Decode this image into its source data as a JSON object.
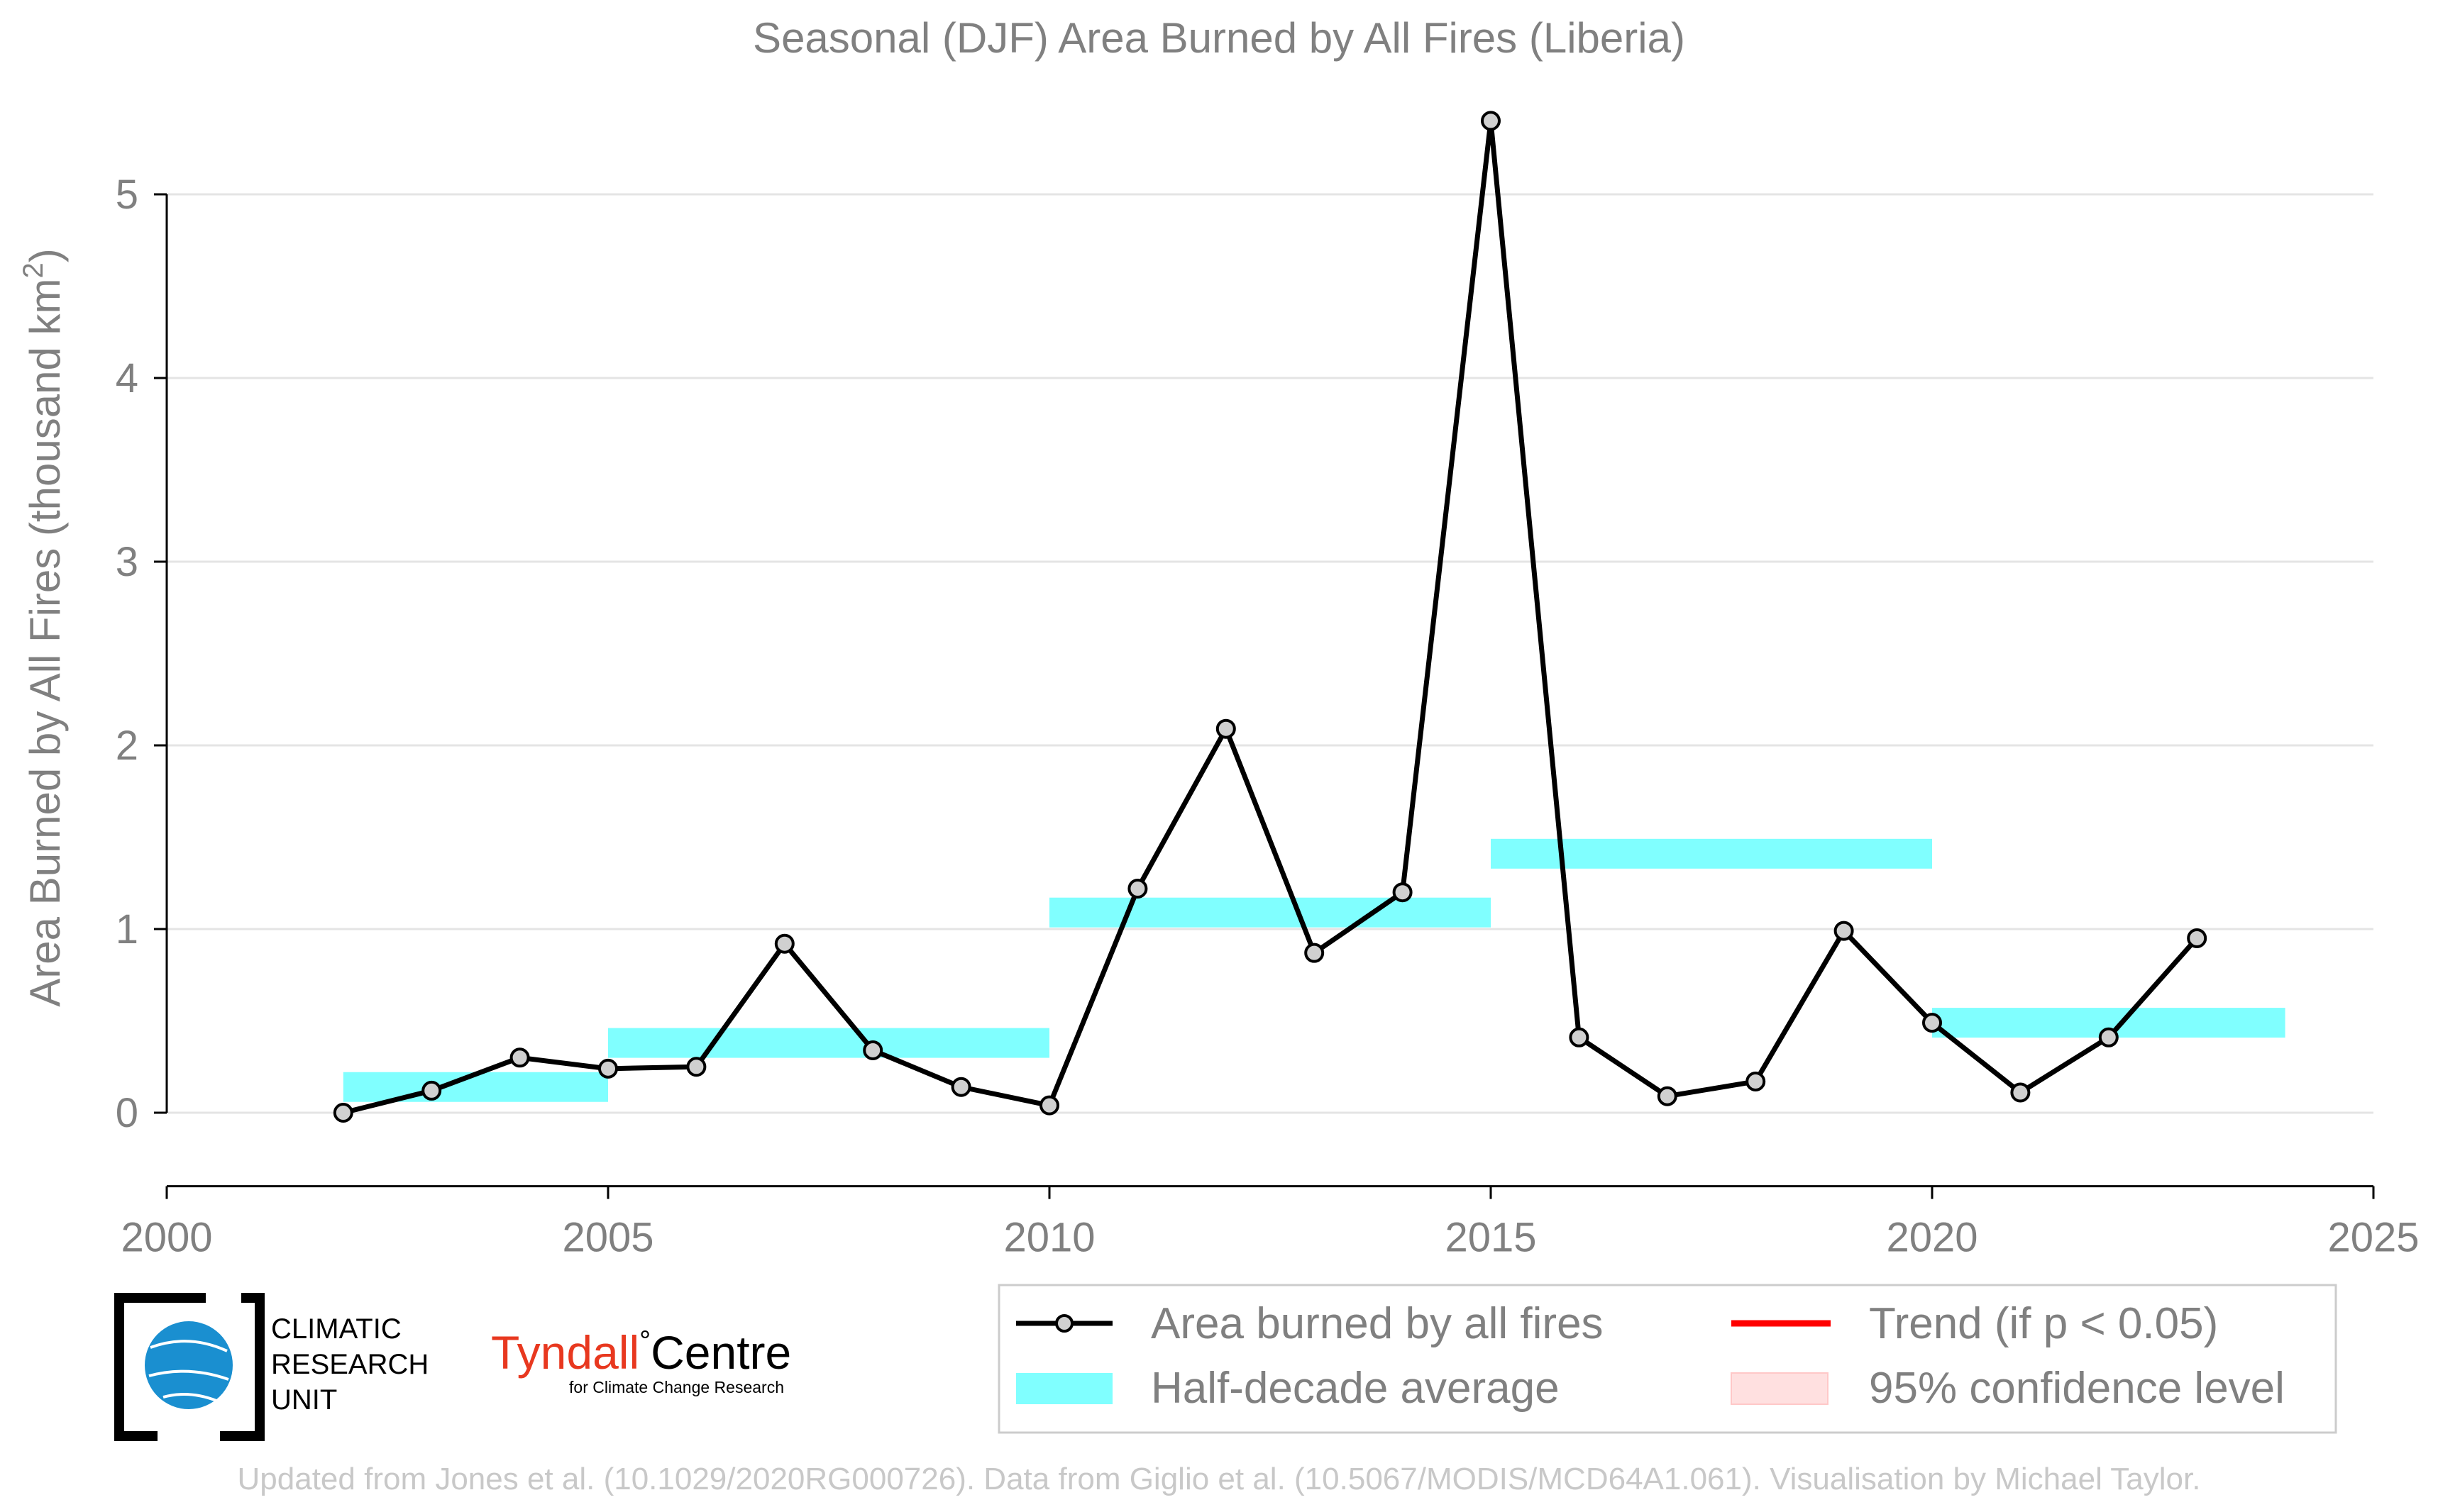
{
  "chart_data": {
    "type": "line",
    "title": "Seasonal (DJF) Area Burned by All Fires (Liberia)",
    "ylabel_main": "Area Burned by All Fires (thousand km",
    "ylabel_sup": "2",
    "ylabel_close": ")",
    "xlim": [
      2000,
      2025
    ],
    "ylim": [
      -0.4,
      5.45
    ],
    "xticks": [
      "2000",
      "2005",
      "2010",
      "2015",
      "2020",
      "2025"
    ],
    "yticks": [
      "0",
      "1",
      "2",
      "3",
      "4",
      "5"
    ],
    "grid": true,
    "legend_position": "bottom-right",
    "series": [
      {
        "name": "Area burned by all fires",
        "color": "#000000",
        "marker_fill": "#d0d0d0",
        "x": [
          2002,
          2003,
          2004,
          2005,
          2006,
          2007,
          2008,
          2009,
          2010,
          2011,
          2012,
          2013,
          2014,
          2015,
          2016,
          2017,
          2018,
          2019,
          2020,
          2021,
          2022,
          2023
        ],
        "values": [
          0.0,
          0.12,
          0.3,
          0.24,
          0.25,
          0.92,
          0.34,
          0.14,
          0.04,
          1.22,
          2.09,
          0.87,
          1.2,
          5.4,
          0.41,
          0.09,
          0.17,
          0.99,
          0.49,
          0.11,
          0.41,
          0.95
        ]
      }
    ],
    "half_decade_average": {
      "name": "Half-decade average",
      "color": "#80ffff",
      "segments": [
        {
          "x0": 2002,
          "x1": 2005,
          "value": 0.14
        },
        {
          "x0": 2005,
          "x1": 2010,
          "value": 0.38
        },
        {
          "x0": 2010,
          "x1": 2015,
          "value": 1.09
        },
        {
          "x0": 2015,
          "x1": 2020,
          "value": 1.41
        },
        {
          "x0": 2020,
          "x1": 2024,
          "value": 0.49
        }
      ]
    },
    "legend": [
      {
        "label": "Area burned by all fires",
        "kind": "line-marker",
        "color": "#000000"
      },
      {
        "label": "Trend (if p < 0.05)",
        "kind": "line",
        "color": "#ff0000"
      },
      {
        "label": "Half-decade average",
        "kind": "band",
        "color": "#80ffff"
      },
      {
        "label": "95% confidence level",
        "kind": "band",
        "color": "#ffe0e0"
      }
    ]
  },
  "logos": {
    "cru_lines": [
      "CLIMATIC",
      "RESEARCH",
      "UNIT"
    ],
    "tyndall_name": "Tyndall",
    "tyndall_degree": "°",
    "tyndall_centre": "Centre",
    "tyndall_sub": "for Climate Change Research",
    "cru_blue": "#1a8fd0",
    "tyndall_red": "#e8381f"
  },
  "footer": "Updated from Jones et al. (10.1029/2020RG000726). Data from Giglio et al. (10.5067/MODIS/MCD64A1.061). Visualisation by Michael Taylor."
}
